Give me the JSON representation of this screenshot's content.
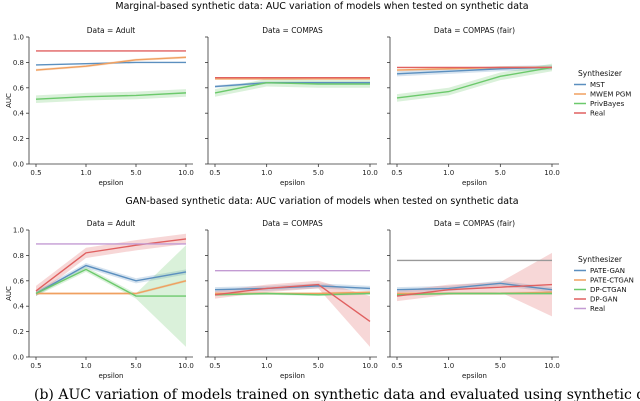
{
  "figure_titles": [
    "Marginal-based synthetic data: AUC variation of models when tested on synthetic data",
    "GAN-based synthetic data: AUC variation of models when tested on synthetic data"
  ],
  "caption": "(b) AUC variation of models trained on synthetic data and evaluated using synthetic data",
  "legend_title": "Synthesizer",
  "colors": {
    "blue": "#5b8fbf",
    "orange": "#f0a060",
    "green": "#6cc96c",
    "red": "#e06060",
    "purple": "#c39bd3",
    "brown": "#a9826a",
    "gray": "#999999"
  },
  "chart_data": [
    {
      "type": "line",
      "group": "marginal",
      "title": "Data = Adult",
      "xlabel": "epsilon",
      "ylabel": "AUC",
      "categories": [
        "0.5",
        "1.0",
        "5.0",
        "10.0"
      ],
      "ylim": [
        0.0,
        1.0
      ],
      "yticks": [
        "0.0",
        "0.2",
        "0.4",
        "0.6",
        "0.8",
        "1.0"
      ],
      "series": [
        {
          "name": "MST",
          "color": "#5b8fbf",
          "values": [
            0.78,
            0.79,
            0.8,
            0.8
          ],
          "band": 0.0
        },
        {
          "name": "MWEM PGM",
          "color": "#f0a060",
          "values": [
            0.74,
            0.77,
            0.82,
            0.84
          ],
          "band": 0.01
        },
        {
          "name": "PrivBayes",
          "color": "#6cc96c",
          "values": [
            0.51,
            0.53,
            0.54,
            0.56
          ],
          "band": 0.03
        },
        {
          "name": "Real",
          "color": "#e06060",
          "values": [
            0.89,
            0.89,
            0.89,
            0.89
          ],
          "band": 0.0
        }
      ]
    },
    {
      "type": "line",
      "group": "marginal",
      "title": "Data = COMPAS",
      "xlabel": "epsilon",
      "ylabel": "",
      "categories": [
        "0.5",
        "1.0",
        "5.0",
        "10.0"
      ],
      "ylim": [
        0.0,
        1.0
      ],
      "yticks": [
        "",
        "",
        "",
        "",
        "",
        ""
      ],
      "series": [
        {
          "name": "MST",
          "color": "#5b8fbf",
          "values": [
            0.61,
            0.64,
            0.64,
            0.64
          ],
          "band": 0.01
        },
        {
          "name": "MWEM PGM",
          "color": "#f0a060",
          "values": [
            0.67,
            0.67,
            0.67,
            0.67
          ],
          "band": 0.0
        },
        {
          "name": "PrivBayes",
          "color": "#6cc96c",
          "values": [
            0.56,
            0.64,
            0.63,
            0.63
          ],
          "band": 0.03
        },
        {
          "name": "Real",
          "color": "#e06060",
          "values": [
            0.68,
            0.68,
            0.68,
            0.68
          ],
          "band": 0.0
        }
      ]
    },
    {
      "type": "line",
      "group": "marginal",
      "title": "Data = COMPAS (fair)",
      "xlabel": "epsilon",
      "ylabel": "",
      "categories": [
        "0.5",
        "1.0",
        "5.0",
        "10.0"
      ],
      "ylim": [
        0.0,
        1.0
      ],
      "yticks": [
        "",
        "",
        "",
        "",
        "",
        ""
      ],
      "series": [
        {
          "name": "MST",
          "color": "#5b8fbf",
          "values": [
            0.71,
            0.73,
            0.75,
            0.76
          ],
          "band": 0.02
        },
        {
          "name": "MWEM PGM",
          "color": "#f0a060",
          "values": [
            0.74,
            0.75,
            0.76,
            0.76
          ],
          "band": 0.01
        },
        {
          "name": "PrivBayes",
          "color": "#6cc96c",
          "values": [
            0.52,
            0.57,
            0.69,
            0.76
          ],
          "band": 0.03
        },
        {
          "name": "Real",
          "color": "#e06060",
          "values": [
            0.76,
            0.76,
            0.76,
            0.76
          ],
          "band": 0.0
        }
      ]
    },
    {
      "type": "line",
      "group": "gan",
      "title": "Data = Adult",
      "xlabel": "epsilon",
      "ylabel": "AUC",
      "categories": [
        "0.5",
        "1.0",
        "5.0",
        "10.0"
      ],
      "ylim": [
        0.0,
        1.0
      ],
      "yticks": [
        "0.0",
        "0.2",
        "0.4",
        "0.6",
        "0.8",
        "1.0"
      ],
      "series": [
        {
          "name": "PATE-GAN",
          "color": "#5b8fbf",
          "values": [
            0.5,
            0.72,
            0.6,
            0.67
          ],
          "band": 0.02
        },
        {
          "name": "PATE-CTGAN",
          "color": "#f0a060",
          "values": [
            0.5,
            0.5,
            0.5,
            0.6
          ],
          "band": 0.01
        },
        {
          "name": "DP-CTGAN",
          "color": "#6cc96c",
          "values": [
            0.5,
            0.69,
            0.48,
            0.48
          ],
          "band": 0.02,
          "band_last": 0.4
        },
        {
          "name": "DP-GAN",
          "color": "#e06060",
          "values": [
            0.52,
            0.82,
            0.88,
            0.93
          ],
          "band": 0.04
        },
        {
          "name": "Real",
          "color": "#c39bd3",
          "values": [
            0.89,
            0.89,
            0.89,
            0.89
          ],
          "band": 0.0
        }
      ]
    },
    {
      "type": "line",
      "group": "gan",
      "title": "Data = COMPAS",
      "xlabel": "epsilon",
      "ylabel": "",
      "categories": [
        "0.5",
        "1.0",
        "5.0",
        "10.0"
      ],
      "ylim": [
        0.0,
        1.0
      ],
      "yticks": [
        "",
        "",
        "",
        "",
        "",
        ""
      ],
      "series": [
        {
          "name": "PATE-GAN",
          "color": "#5b8fbf",
          "values": [
            0.53,
            0.54,
            0.56,
            0.54
          ],
          "band": 0.02
        },
        {
          "name": "PATE-CTGAN",
          "color": "#f0a060",
          "values": [
            0.5,
            0.5,
            0.5,
            0.51
          ],
          "band": 0.01
        },
        {
          "name": "DP-CTGAN",
          "color": "#6cc96c",
          "values": [
            0.49,
            0.5,
            0.49,
            0.5
          ],
          "band": 0.01
        },
        {
          "name": "DP-GAN",
          "color": "#e06060",
          "values": [
            0.49,
            0.54,
            0.57,
            0.28
          ],
          "band": 0.03,
          "band_last": 0.2
        },
        {
          "name": "Real",
          "color": "#c39bd3",
          "values": [
            0.68,
            0.68,
            0.68,
            0.68
          ],
          "band": 0.0
        }
      ]
    },
    {
      "type": "line",
      "group": "gan",
      "title": "Data = COMPAS (fair)",
      "xlabel": "epsilon",
      "ylabel": "",
      "categories": [
        "0.5",
        "1.0",
        "5.0",
        "10.0"
      ],
      "ylim": [
        0.0,
        1.0
      ],
      "yticks": [
        "",
        "",
        "",
        "",
        "",
        ""
      ],
      "series": [
        {
          "name": "PATE-GAN",
          "color": "#5b8fbf",
          "values": [
            0.53,
            0.54,
            0.58,
            0.53
          ],
          "band": 0.02
        },
        {
          "name": "PATE-CTGAN",
          "color": "#f0a060",
          "values": [
            0.5,
            0.5,
            0.5,
            0.51
          ],
          "band": 0.01
        },
        {
          "name": "DP-CTGAN",
          "color": "#6cc96c",
          "values": [
            0.49,
            0.5,
            0.5,
            0.5
          ],
          "band": 0.01
        },
        {
          "name": "DP-GAN",
          "color": "#e06060",
          "values": [
            0.48,
            0.53,
            0.55,
            0.57
          ],
          "band": 0.04,
          "band_last": 0.25
        },
        {
          "name": "Real",
          "color": "#999999",
          "values": [
            0.76,
            0.76,
            0.76,
            0.76
          ],
          "band": 0.0
        }
      ]
    }
  ],
  "legends": {
    "marginal": [
      "MST",
      "MWEM PGM",
      "PrivBayes",
      "Real"
    ],
    "gan": [
      "PATE-GAN",
      "PATE-CTGAN",
      "DP-CTGAN",
      "DP-GAN",
      "Real"
    ]
  }
}
